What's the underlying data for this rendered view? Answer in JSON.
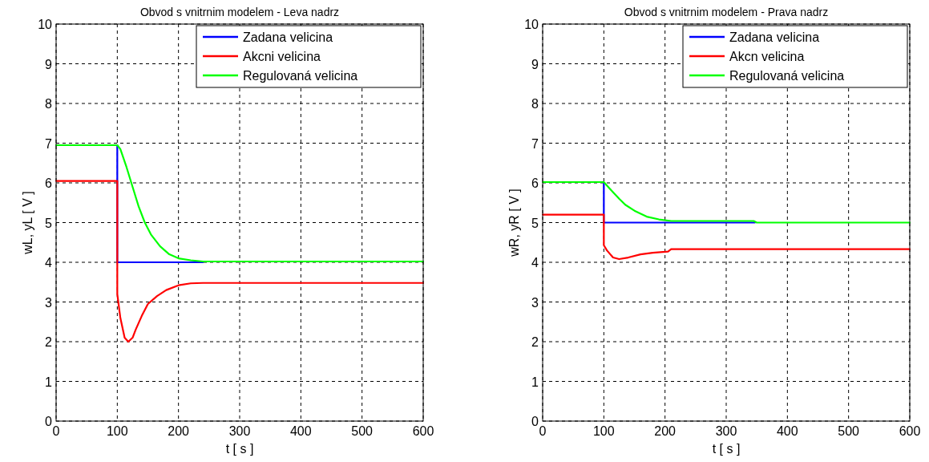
{
  "chart_data": [
    {
      "type": "line",
      "title": "Obvod s vnitrnim modelem - Leva nadrz",
      "xlabel": "t [ s ]",
      "ylabel": "wL, yL [ V ]",
      "xlim": [
        0,
        600
      ],
      "ylim": [
        0,
        10
      ],
      "xticks": [
        0,
        100,
        200,
        300,
        400,
        500,
        600
      ],
      "yticks": [
        0,
        1,
        2,
        3,
        4,
        5,
        6,
        7,
        8,
        9,
        10
      ],
      "grid": true,
      "legend": "top right",
      "line_style": "solid",
      "marker": "none",
      "series": [
        {
          "name": "Zadana velicina",
          "color": "#0000ff",
          "x": [
            100,
            100,
            240
          ],
          "values": [
            6.95,
            4,
            4
          ]
        },
        {
          "name": "Akcni velicina",
          "color": "#ff0000",
          "x": [
            0,
            100,
            100,
            105,
            112,
            118,
            125,
            130,
            140,
            150,
            165,
            180,
            200,
            220,
            240,
            600
          ],
          "values": [
            6.05,
            6.05,
            3.2,
            2.6,
            2.1,
            2.0,
            2.1,
            2.3,
            2.65,
            2.95,
            3.15,
            3.3,
            3.42,
            3.47,
            3.48,
            3.48
          ]
        },
        {
          "name": "Regulovaná velicina",
          "color": "#00ff00",
          "x": [
            0,
            100,
            105,
            115,
            125,
            135,
            145,
            155,
            170,
            185,
            200,
            220,
            240,
            600
          ],
          "values": [
            6.95,
            6.95,
            6.85,
            6.4,
            5.9,
            5.4,
            5.0,
            4.7,
            4.4,
            4.2,
            4.1,
            4.05,
            4.02,
            4.02
          ]
        }
      ]
    },
    {
      "type": "line",
      "title": "Obvod s vnitrnim modelem - Prava nadrz",
      "xlabel": "t [ s ]",
      "ylabel": "wR, yR [ V ]",
      "xlim": [
        0,
        600
      ],
      "ylim": [
        0,
        10
      ],
      "xticks": [
        0,
        100,
        200,
        300,
        400,
        500,
        600
      ],
      "yticks": [
        0,
        1,
        2,
        3,
        4,
        5,
        6,
        7,
        8,
        9,
        10
      ],
      "grid": true,
      "legend": "top right",
      "line_style": "solid",
      "marker": "none",
      "series": [
        {
          "name": "Zadana velicina",
          "color": "#0000ff",
          "x": [
            100,
            100,
            347
          ],
          "values": [
            6.0,
            5,
            5
          ]
        },
        {
          "name": "Akcn velicina",
          "color": "#ff0000",
          "x": [
            0,
            100,
            100,
            105,
            115,
            125,
            140,
            160,
            180,
            205,
            210,
            600
          ],
          "values": [
            5.2,
            5.2,
            4.43,
            4.3,
            4.12,
            4.08,
            4.12,
            4.2,
            4.24,
            4.27,
            4.33,
            4.33
          ]
        },
        {
          "name": "Regulovaná velicina",
          "color": "#00ff00",
          "x": [
            0,
            100,
            110,
            125,
            135,
            150,
            170,
            190,
            210,
            345,
            350,
            600
          ],
          "values": [
            6.02,
            6.02,
            5.85,
            5.6,
            5.45,
            5.3,
            5.15,
            5.08,
            5.04,
            5.04,
            5.0,
            5.0
          ]
        }
      ]
    }
  ]
}
